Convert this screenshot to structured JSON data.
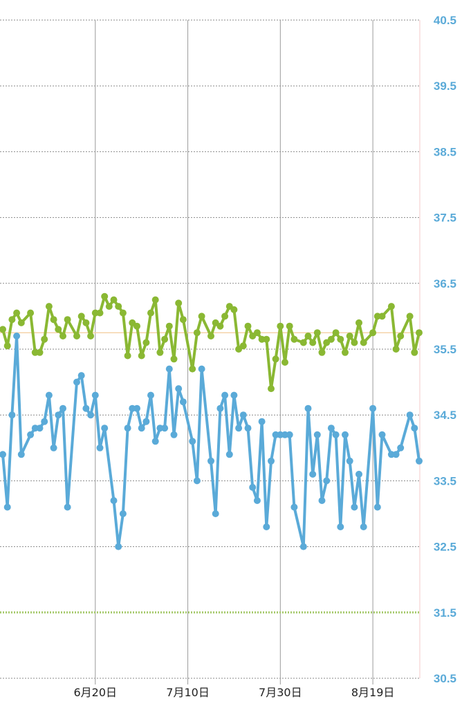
{
  "chart_data": {
    "type": "line",
    "title": "",
    "xlabel": "",
    "ylabel": "",
    "ylim": [
      30.5,
      40.5
    ],
    "y_ticks": [
      "40.5",
      "39.5",
      "38.5",
      "37.5",
      "36.5",
      "35.5",
      "34.5",
      "33.5",
      "32.5",
      "31.5",
      "30.5"
    ],
    "x_ticks": [
      {
        "label": "6月20日",
        "day": 20
      },
      {
        "label": "7月10日",
        "day": 40
      },
      {
        "label": "7月30日",
        "day": 60
      },
      {
        "label": "8月19日",
        "day": 80
      }
    ],
    "x_range": [
      0,
      90
    ],
    "grid": "on",
    "reference_lines": [
      {
        "value": 35.75,
        "color": "#f5d3a8",
        "style": "solid"
      },
      {
        "value": 31.5,
        "color": "#a5c96a",
        "style": "dotted"
      }
    ],
    "series": [
      {
        "color": "#8ab833",
        "points": [
          [
            0,
            35.8
          ],
          [
            1,
            35.55
          ],
          [
            2,
            35.95
          ],
          [
            3,
            36.05
          ],
          [
            4,
            35.9
          ],
          [
            6,
            36.05
          ],
          [
            7,
            35.45
          ],
          [
            8,
            35.45
          ],
          [
            9,
            35.65
          ],
          [
            10,
            36.15
          ],
          [
            11,
            35.95
          ],
          [
            12,
            35.8
          ],
          [
            13,
            35.7
          ],
          [
            14,
            35.95
          ],
          [
            16,
            35.7
          ],
          [
            17,
            36.0
          ],
          [
            18,
            35.9
          ],
          [
            19,
            35.7
          ],
          [
            20,
            36.05
          ],
          [
            21,
            36.05
          ],
          [
            22,
            36.3
          ],
          [
            23,
            36.15
          ],
          [
            24,
            36.25
          ],
          [
            25,
            36.15
          ],
          [
            26,
            36.05
          ],
          [
            27,
            35.4
          ],
          [
            28,
            35.9
          ],
          [
            29,
            35.85
          ],
          [
            30,
            35.4
          ],
          [
            31,
            35.6
          ],
          [
            32,
            36.05
          ],
          [
            33,
            36.25
          ],
          [
            34,
            35.45
          ],
          [
            35,
            35.65
          ],
          [
            36,
            35.85
          ],
          [
            37,
            35.35
          ],
          [
            38,
            36.2
          ],
          [
            39,
            35.95
          ],
          [
            41,
            35.2
          ],
          [
            42,
            35.75
          ],
          [
            43,
            36.0
          ],
          [
            45,
            35.7
          ],
          [
            46,
            35.9
          ],
          [
            47,
            35.85
          ],
          [
            48,
            36.0
          ],
          [
            49,
            36.15
          ],
          [
            50,
            36.1
          ],
          [
            51,
            35.5
          ],
          [
            52,
            35.55
          ],
          [
            53,
            35.85
          ],
          [
            54,
            35.7
          ],
          [
            55,
            35.75
          ],
          [
            56,
            35.65
          ],
          [
            57,
            35.65
          ],
          [
            58,
            34.9
          ],
          [
            59,
            35.35
          ],
          [
            60,
            35.85
          ],
          [
            61,
            35.3
          ],
          [
            62,
            35.85
          ],
          [
            63,
            35.65
          ],
          [
            65,
            35.6
          ],
          [
            66,
            35.7
          ],
          [
            67,
            35.6
          ],
          [
            68,
            35.75
          ],
          [
            69,
            35.45
          ],
          [
            70,
            35.6
          ],
          [
            71,
            35.65
          ],
          [
            72,
            35.75
          ],
          [
            73,
            35.65
          ],
          [
            74,
            35.45
          ],
          [
            75,
            35.7
          ],
          [
            76,
            35.6
          ],
          [
            77,
            35.9
          ],
          [
            78,
            35.6
          ],
          [
            80,
            35.75
          ],
          [
            81,
            36.0
          ],
          [
            82,
            36.0
          ],
          [
            84,
            36.15
          ],
          [
            85,
            35.5
          ],
          [
            86,
            35.7
          ],
          [
            88,
            36.0
          ],
          [
            89,
            35.45
          ],
          [
            90,
            35.75
          ]
        ]
      },
      {
        "color": "#5aaad8",
        "points": [
          [
            0,
            33.9
          ],
          [
            1,
            33.1
          ],
          [
            2,
            34.5
          ],
          [
            3,
            35.7
          ],
          [
            4,
            33.9
          ],
          [
            6,
            34.2
          ],
          [
            7,
            34.3
          ],
          [
            8,
            34.3
          ],
          [
            9,
            34.4
          ],
          [
            10,
            34.8
          ],
          [
            11,
            34.0
          ],
          [
            12,
            34.5
          ],
          [
            13,
            34.6
          ],
          [
            14,
            33.1
          ],
          [
            16,
            35.0
          ],
          [
            17,
            35.1
          ],
          [
            18,
            34.6
          ],
          [
            19,
            34.5
          ],
          [
            20,
            34.8
          ],
          [
            21,
            34.0
          ],
          [
            22,
            34.3
          ],
          [
            24,
            33.2
          ],
          [
            25,
            32.5
          ],
          [
            26,
            33.0
          ],
          [
            27,
            34.3
          ],
          [
            28,
            34.6
          ],
          [
            29,
            34.6
          ],
          [
            30,
            34.3
          ],
          [
            31,
            34.4
          ],
          [
            32,
            34.8
          ],
          [
            33,
            34.1
          ],
          [
            34,
            34.3
          ],
          [
            35,
            34.3
          ],
          [
            36,
            35.2
          ],
          [
            37,
            34.2
          ],
          [
            38,
            34.9
          ],
          [
            39,
            34.7
          ],
          [
            41,
            34.1
          ],
          [
            42,
            33.5
          ],
          [
            43,
            35.2
          ],
          [
            45,
            33.8
          ],
          [
            46,
            33.0
          ],
          [
            47,
            34.6
          ],
          [
            48,
            34.8
          ],
          [
            49,
            33.9
          ],
          [
            50,
            34.8
          ],
          [
            51,
            34.3
          ],
          [
            52,
            34.5
          ],
          [
            53,
            34.3
          ],
          [
            54,
            33.4
          ],
          [
            55,
            33.2
          ],
          [
            56,
            34.4
          ],
          [
            57,
            32.8
          ],
          [
            58,
            33.8
          ],
          [
            59,
            34.2
          ],
          [
            60,
            34.2
          ],
          [
            61,
            34.2
          ],
          [
            62,
            34.2
          ],
          [
            63,
            33.1
          ],
          [
            65,
            32.5
          ],
          [
            66,
            34.6
          ],
          [
            67,
            33.6
          ],
          [
            68,
            34.2
          ],
          [
            69,
            33.2
          ],
          [
            70,
            33.5
          ],
          [
            71,
            34.3
          ],
          [
            72,
            34.2
          ],
          [
            73,
            32.8
          ],
          [
            74,
            34.2
          ],
          [
            75,
            33.8
          ],
          [
            76,
            33.1
          ],
          [
            77,
            33.6
          ],
          [
            78,
            32.8
          ],
          [
            80,
            34.6
          ],
          [
            81,
            33.1
          ],
          [
            82,
            34.2
          ],
          [
            84,
            33.9
          ],
          [
            85,
            33.9
          ],
          [
            86,
            34.0
          ],
          [
            88,
            34.5
          ],
          [
            89,
            34.3
          ],
          [
            90,
            33.8
          ]
        ]
      }
    ]
  },
  "colors": {
    "ytick": "#5aaad8",
    "grid_dotted": "#8a8a8a",
    "grid_vertical": "#9a9a9a",
    "right_axis": "#f6c9c9"
  }
}
